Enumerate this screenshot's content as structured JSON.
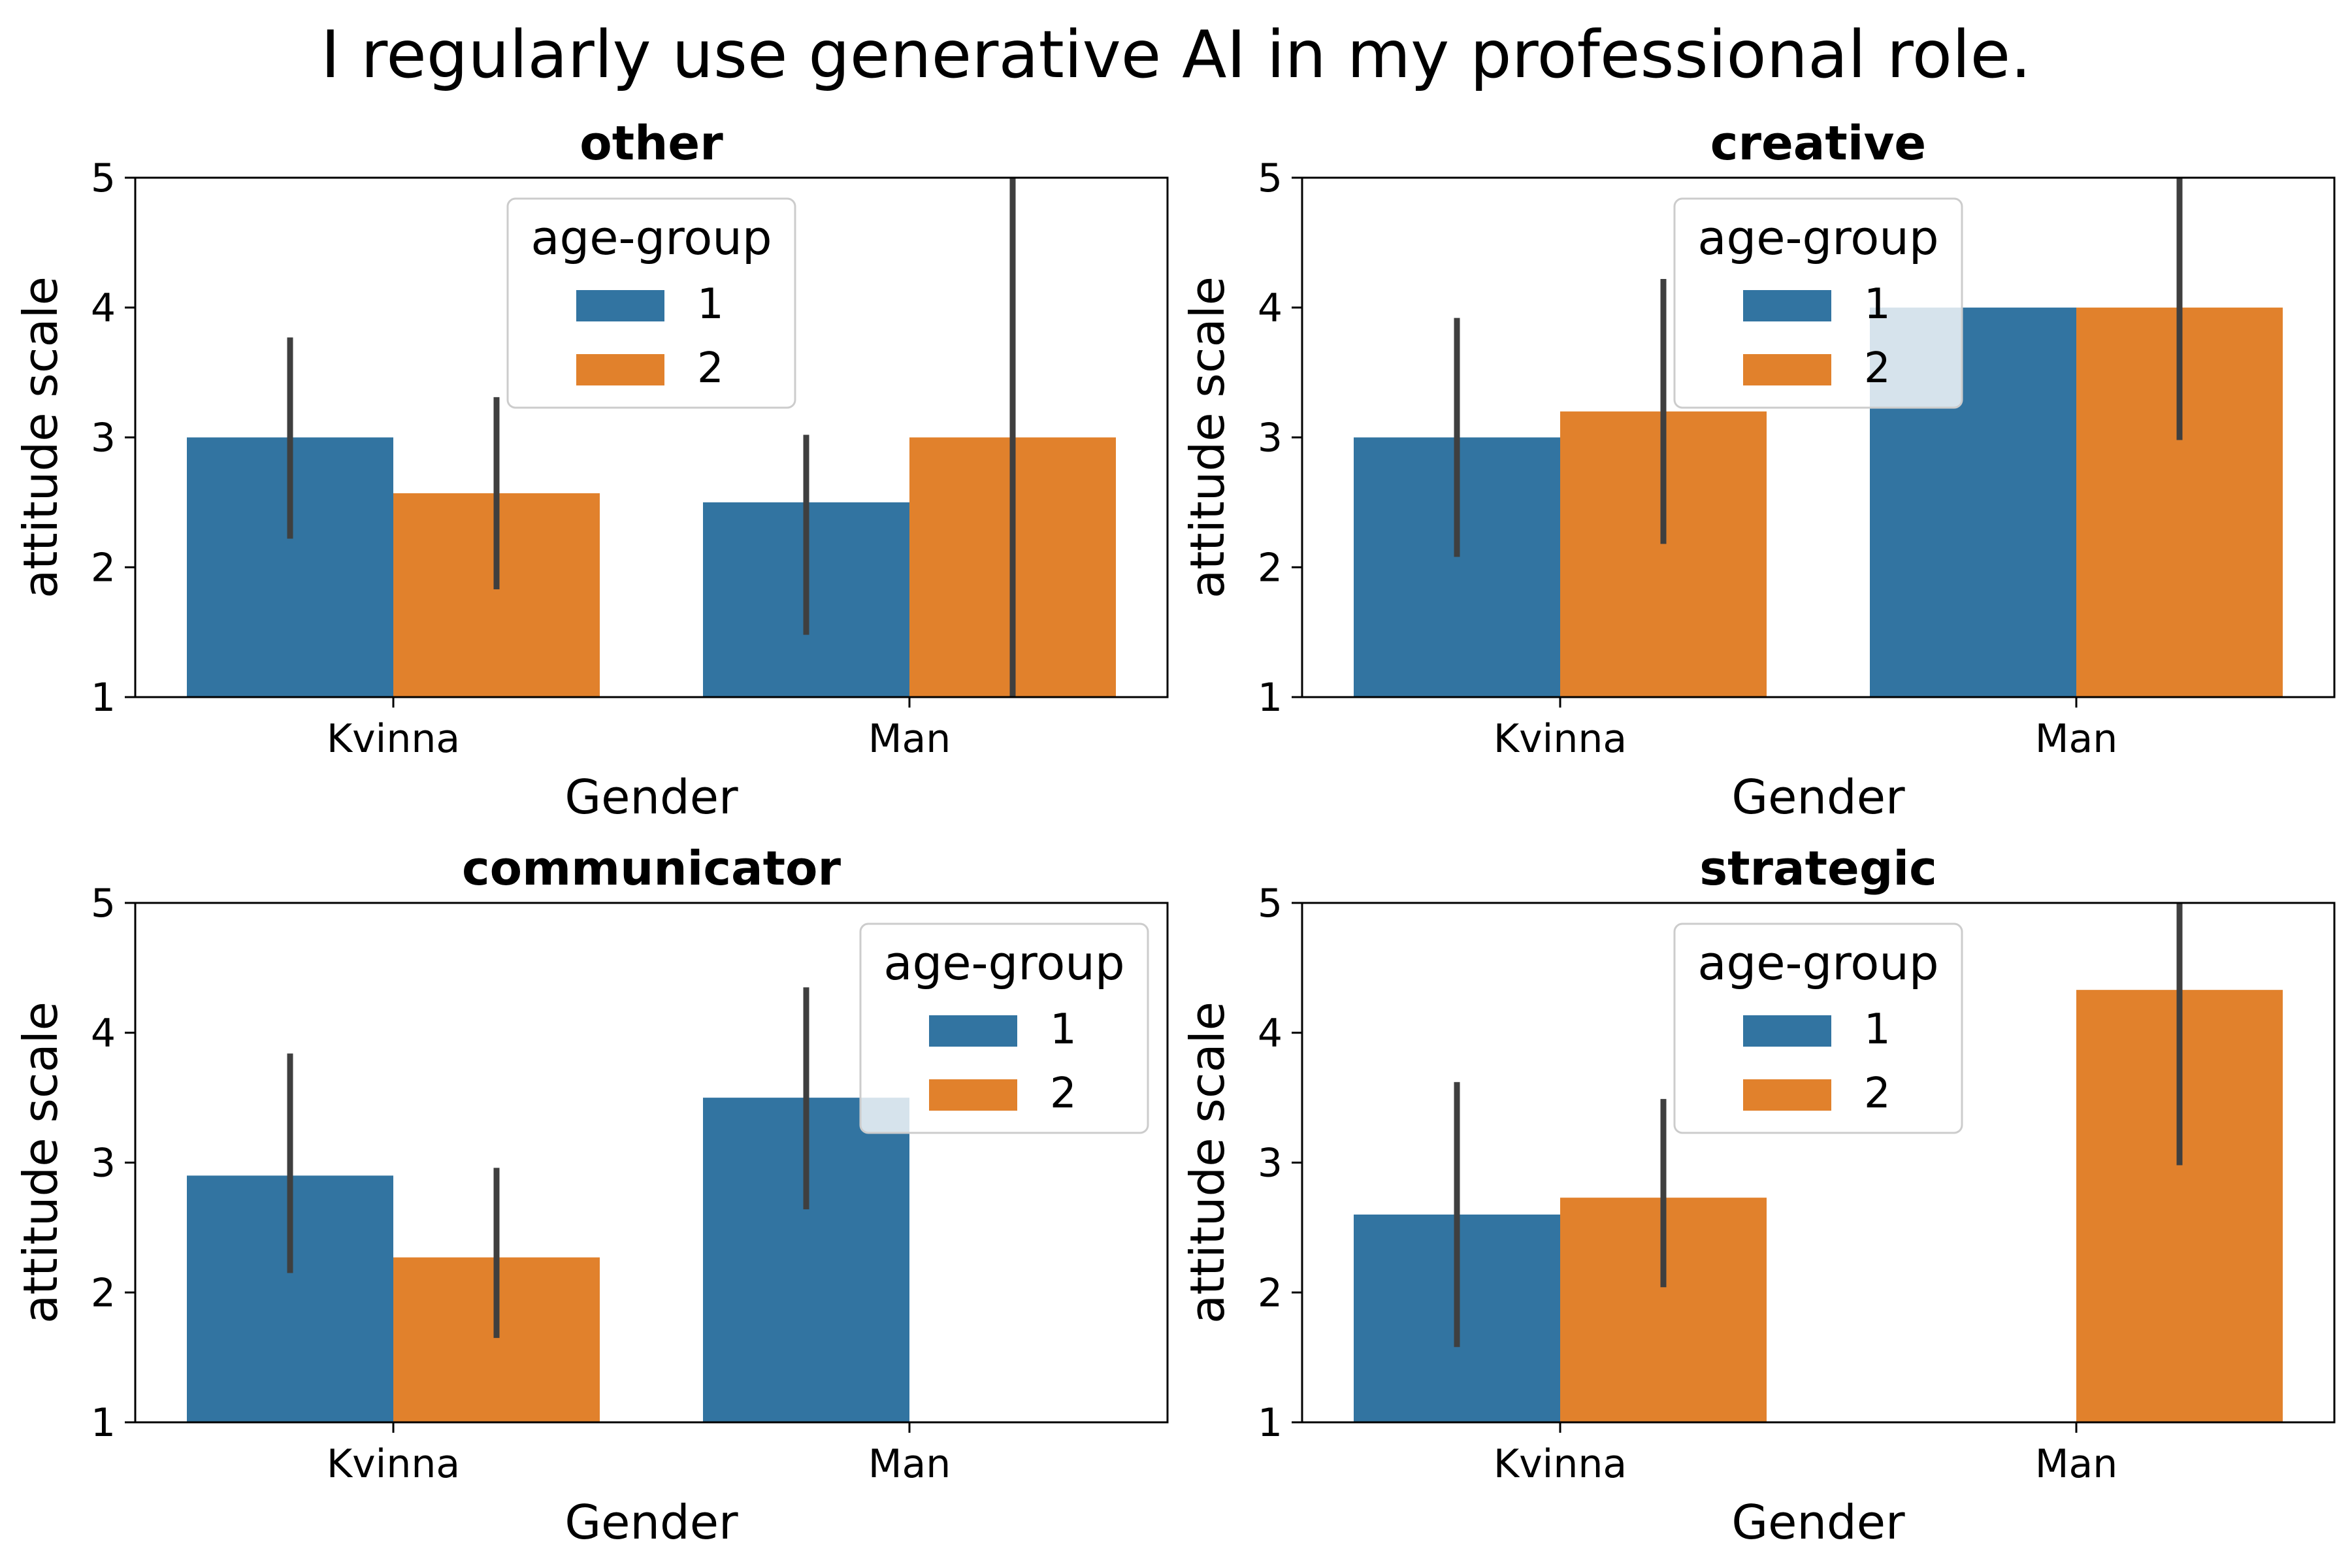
{
  "figure": {
    "title": "I regularly use generative AI in my professional role."
  },
  "colors": {
    "group_1": "#3274a1",
    "group_2": "#e1812c",
    "error_bar": "#3f3f3f"
  },
  "chart_data": [
    {
      "type": "bar",
      "title": "other",
      "xlabel": "Gender",
      "ylabel": "attitude scale",
      "categories": [
        "Kvinna",
        "Man"
      ],
      "ylim": [
        1,
        5
      ],
      "yticks": [
        1,
        2,
        3,
        4,
        5
      ],
      "legend": {
        "title": "age-group",
        "placement": "upper-center"
      },
      "series": [
        {
          "name": "1",
          "values": [
            3.0,
            2.5
          ],
          "ci_low": [
            2.22,
            1.48
          ],
          "ci_high": [
            3.77,
            3.02
          ]
        },
        {
          "name": "2",
          "values": [
            2.57,
            3.0
          ],
          "ci_low": [
            1.83,
            1.0
          ],
          "ci_high": [
            3.31,
            5.0
          ]
        }
      ]
    },
    {
      "type": "bar",
      "title": "creative",
      "xlabel": "Gender",
      "ylabel": "attitude scale",
      "categories": [
        "Kvinna",
        "Man"
      ],
      "ylim": [
        1,
        5
      ],
      "yticks": [
        1,
        2,
        3,
        4,
        5
      ],
      "legend": {
        "title": "age-group",
        "placement": "upper-center"
      },
      "series": [
        {
          "name": "1",
          "values": [
            3.0,
            4.0
          ],
          "ci_low": [
            2.08,
            4.0
          ],
          "ci_high": [
            3.92,
            4.0
          ]
        },
        {
          "name": "2",
          "values": [
            3.2,
            4.0
          ],
          "ci_low": [
            2.18,
            2.98
          ],
          "ci_high": [
            4.22,
            5.0
          ]
        }
      ]
    },
    {
      "type": "bar",
      "title": "communicator",
      "xlabel": "Gender",
      "ylabel": "attitude scale",
      "categories": [
        "Kvinna",
        "Man"
      ],
      "ylim": [
        1,
        5
      ],
      "yticks": [
        1,
        2,
        3,
        4,
        5
      ],
      "legend": {
        "title": "age-group",
        "placement": "upper-right"
      },
      "series": [
        {
          "name": "1",
          "values": [
            2.9,
            3.5
          ],
          "ci_low": [
            2.15,
            2.64
          ],
          "ci_high": [
            3.84,
            4.35
          ]
        },
        {
          "name": "2",
          "values": [
            2.27,
            null
          ],
          "ci_low": [
            1.65,
            null
          ],
          "ci_high": [
            2.96,
            null
          ]
        }
      ]
    },
    {
      "type": "bar",
      "title": "strategic",
      "xlabel": "Gender",
      "ylabel": "attitude scale",
      "categories": [
        "Kvinna",
        "Man"
      ],
      "ylim": [
        1,
        5
      ],
      "yticks": [
        1,
        2,
        3,
        4,
        5
      ],
      "legend": {
        "title": "age-group",
        "placement": "upper-center"
      },
      "series": [
        {
          "name": "1",
          "values": [
            2.6,
            null
          ],
          "ci_low": [
            1.58,
            null
          ],
          "ci_high": [
            3.62,
            null
          ]
        },
        {
          "name": "2",
          "values": [
            2.73,
            4.33
          ],
          "ci_low": [
            2.04,
            2.98
          ],
          "ci_high": [
            3.49,
            5.0
          ]
        }
      ]
    }
  ]
}
